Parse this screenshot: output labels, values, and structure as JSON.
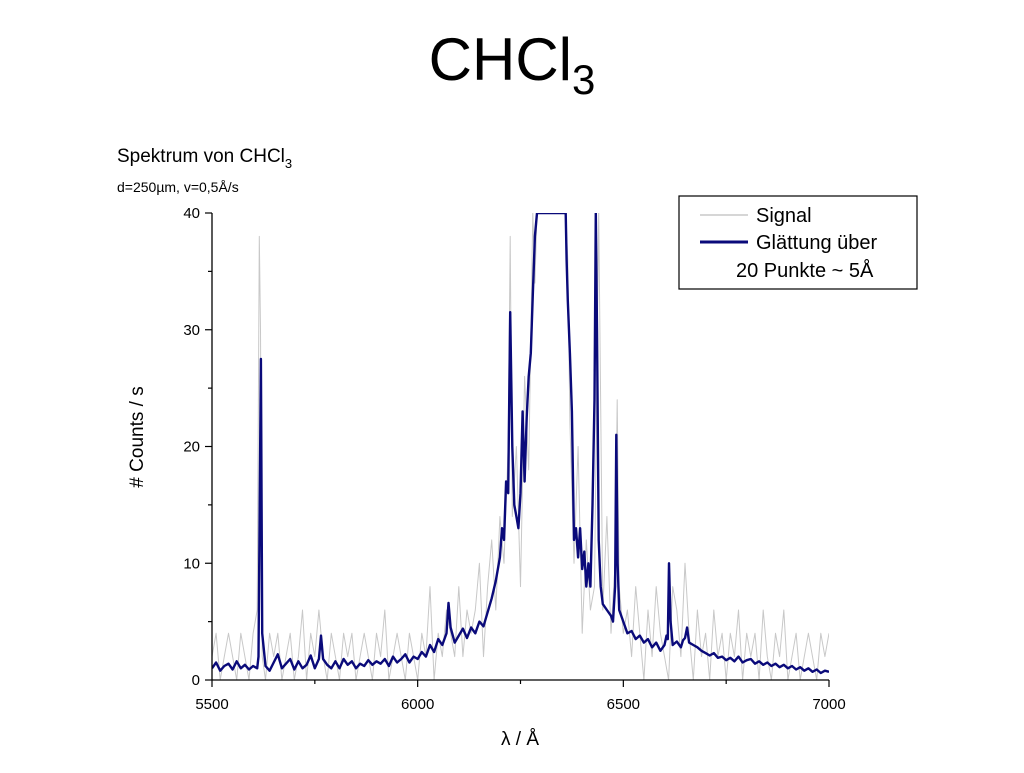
{
  "slide": {
    "title_main": "CHCl",
    "title_sub": "3"
  },
  "chart_data": {
    "type": "line",
    "title_main": "Spektrum von CHCl",
    "title_sub": "3",
    "subtitle": "d=250µm, v=0,5Å/s",
    "xlabel": "λ / Å",
    "ylabel": "# Counts / s",
    "xlim": [
      5500,
      7000
    ],
    "ylim": [
      0,
      40
    ],
    "x_ticks": [
      5500,
      6000,
      6500,
      7000
    ],
    "y_ticks": [
      0,
      10,
      20,
      30,
      40
    ],
    "legend": {
      "position": "top-right",
      "entries": [
        {
          "label": "Signal",
          "color": "#c8c8c8"
        },
        {
          "label": "Glättung über",
          "label_line2": "20 Punkte ~ 5Å",
          "color": "#0a0a7a"
        }
      ]
    },
    "series": [
      {
        "name": "Signal",
        "color": "#c8c8c8",
        "x": [
          5500,
          5510,
          5520,
          5530,
          5540,
          5550,
          5560,
          5570,
          5580,
          5590,
          5600,
          5610,
          5615,
          5618,
          5622,
          5630,
          5640,
          5650,
          5660,
          5670,
          5680,
          5690,
          5700,
          5710,
          5720,
          5730,
          5740,
          5750,
          5760,
          5770,
          5780,
          5790,
          5800,
          5810,
          5820,
          5830,
          5840,
          5850,
          5860,
          5870,
          5880,
          5890,
          5900,
          5910,
          5920,
          5930,
          5940,
          5950,
          5960,
          5970,
          5980,
          5990,
          6000,
          6010,
          6020,
          6030,
          6040,
          6050,
          6060,
          6070,
          6080,
          6090,
          6100,
          6110,
          6120,
          6130,
          6140,
          6150,
          6160,
          6170,
          6180,
          6190,
          6200,
          6210,
          6220,
          6225,
          6230,
          6240,
          6250,
          6260,
          6270,
          6280,
          6285,
          6290,
          6300,
          6360,
          6365,
          6370,
          6380,
          6390,
          6400,
          6410,
          6420,
          6430,
          6435,
          6440,
          6450,
          6460,
          6470,
          6480,
          6485,
          6490,
          6500,
          6510,
          6520,
          6530,
          6540,
          6550,
          6560,
          6570,
          6580,
          6590,
          6600,
          6610,
          6620,
          6630,
          6640,
          6650,
          6660,
          6670,
          6680,
          6690,
          6700,
          6710,
          6720,
          6730,
          6740,
          6750,
          6760,
          6770,
          6780,
          6790,
          6800,
          6810,
          6820,
          6830,
          6840,
          6850,
          6860,
          6870,
          6880,
          6890,
          6900,
          6910,
          6920,
          6930,
          6940,
          6950,
          6960,
          6970,
          6980,
          6990,
          7000
        ],
        "y": [
          2,
          4,
          0,
          2,
          4,
          2,
          0,
          4,
          2,
          0,
          4,
          6,
          38,
          30,
          2,
          0,
          4,
          2,
          4,
          0,
          2,
          4,
          0,
          2,
          6,
          0,
          4,
          2,
          6,
          2,
          0,
          4,
          2,
          0,
          4,
          2,
          4,
          0,
          2,
          4,
          2,
          0,
          4,
          2,
          6,
          0,
          2,
          4,
          2,
          0,
          4,
          2,
          0,
          4,
          2,
          8,
          0,
          4,
          2,
          6,
          4,
          2,
          8,
          2,
          6,
          4,
          6,
          10,
          2,
          8,
          12,
          6,
          14,
          10,
          20,
          38,
          14,
          20,
          8,
          26,
          18,
          40,
          34,
          40,
          40,
          40,
          36,
          22,
          10,
          20,
          4,
          12,
          6,
          8,
          24,
          40,
          6,
          14,
          4,
          10,
          24,
          8,
          4,
          6,
          2,
          8,
          4,
          0,
          6,
          2,
          8,
          4,
          2,
          0,
          8,
          6,
          2,
          10,
          4,
          0,
          6,
          2,
          4,
          0,
          6,
          2,
          4,
          0,
          4,
          2,
          6,
          0,
          4,
          2,
          4,
          0,
          6,
          2,
          0,
          4,
          2,
          6,
          0,
          2,
          4,
          0,
          2,
          4,
          2,
          0,
          4,
          2,
          4
        ]
      },
      {
        "name": "Glättung über 20 Punkte ~ 5Å",
        "color": "#0a0a7a",
        "x": [
          5500,
          5510,
          5520,
          5530,
          5540,
          5550,
          5560,
          5570,
          5580,
          5590,
          5600,
          5610,
          5613,
          5616,
          5619,
          5622,
          5630,
          5640,
          5650,
          5660,
          5670,
          5680,
          5690,
          5700,
          5710,
          5720,
          5730,
          5740,
          5750,
          5760,
          5765,
          5770,
          5780,
          5790,
          5800,
          5810,
          5820,
          5830,
          5840,
          5850,
          5860,
          5870,
          5880,
          5890,
          5900,
          5910,
          5920,
          5930,
          5940,
          5950,
          5960,
          5970,
          5980,
          5990,
          6000,
          6010,
          6020,
          6030,
          6040,
          6050,
          6060,
          6070,
          6075,
          6080,
          6090,
          6100,
          6110,
          6120,
          6130,
          6140,
          6150,
          6160,
          6170,
          6180,
          6190,
          6200,
          6205,
          6210,
          6215,
          6220,
          6225,
          6230,
          6235,
          6240,
          6245,
          6250,
          6255,
          6260,
          6265,
          6270,
          6275,
          6280,
          6285,
          6290,
          6295,
          6300,
          6360,
          6362,
          6365,
          6370,
          6375,
          6380,
          6385,
          6390,
          6395,
          6400,
          6405,
          6410,
          6415,
          6420,
          6425,
          6430,
          6433,
          6436,
          6440,
          6445,
          6450,
          6460,
          6470,
          6475,
          6480,
          6483,
          6486,
          6490,
          6500,
          6510,
          6520,
          6530,
          6540,
          6550,
          6560,
          6570,
          6580,
          6590,
          6600,
          6605,
          6608,
          6611,
          6615,
          6620,
          6630,
          6640,
          6645,
          6650,
          6655,
          6660,
          6670,
          6680,
          6690,
          6700,
          6710,
          6720,
          6730,
          6740,
          6750,
          6760,
          6770,
          6780,
          6790,
          6800,
          6810,
          6820,
          6830,
          6840,
          6850,
          6860,
          6870,
          6880,
          6890,
          6900,
          6910,
          6920,
          6930,
          6940,
          6950,
          6960,
          6970,
          6980,
          6990,
          7000
        ],
        "y": [
          1.0,
          1.5,
          0.8,
          1.2,
          1.4,
          0.9,
          1.6,
          1.0,
          1.3,
          0.9,
          1.2,
          1.0,
          2.0,
          15.0,
          27.5,
          4.0,
          1.2,
          0.8,
          1.5,
          2.2,
          1.0,
          1.4,
          1.8,
          0.9,
          1.6,
          1.0,
          1.3,
          2.1,
          1.0,
          1.8,
          3.8,
          1.8,
          1.3,
          1.0,
          1.6,
          1.0,
          1.8,
          1.3,
          1.6,
          1.0,
          1.4,
          1.2,
          1.7,
          1.3,
          1.6,
          1.4,
          1.8,
          1.2,
          2.0,
          1.5,
          1.8,
          2.2,
          1.5,
          2.0,
          1.8,
          2.4,
          2.0,
          3.0,
          2.4,
          3.5,
          3.0,
          4.0,
          6.6,
          4.5,
          3.2,
          3.8,
          4.4,
          3.6,
          4.5,
          4.0,
          5.0,
          4.6,
          5.8,
          7.0,
          8.5,
          10.5,
          13.0,
          12.0,
          17.0,
          16.0,
          31.5,
          20.0,
          15.0,
          14.0,
          13.0,
          16.0,
          23.0,
          17.0,
          22.5,
          26.0,
          28.0,
          33.0,
          38.0,
          40.0,
          40.0,
          40.0,
          40.0,
          36.0,
          32.5,
          28.0,
          23.0,
          12.0,
          13.0,
          10.5,
          13.0,
          9.5,
          11.0,
          8.0,
          10.0,
          8.0,
          15.0,
          24.0,
          40.0,
          30.0,
          12.0,
          8.0,
          6.5,
          6.0,
          5.5,
          5.0,
          8.0,
          21.0,
          10.0,
          6.0,
          5.0,
          4.0,
          4.2,
          3.5,
          3.8,
          3.2,
          3.5,
          2.8,
          3.2,
          2.5,
          3.0,
          3.8,
          3.5,
          10.0,
          5.0,
          3.0,
          3.3,
          2.8,
          3.4,
          3.6,
          4.5,
          3.2,
          3.0,
          2.8,
          2.5,
          2.3,
          2.1,
          2.3,
          1.9,
          2.0,
          1.7,
          1.9,
          1.6,
          2.0,
          1.5,
          1.7,
          1.8,
          1.4,
          1.6,
          1.3,
          1.5,
          1.2,
          1.4,
          1.1,
          1.3,
          1.0,
          1.2,
          0.9,
          1.1,
          0.8,
          1.0,
          0.7,
          0.9,
          0.6,
          0.8,
          0.7
        ]
      }
    ]
  }
}
